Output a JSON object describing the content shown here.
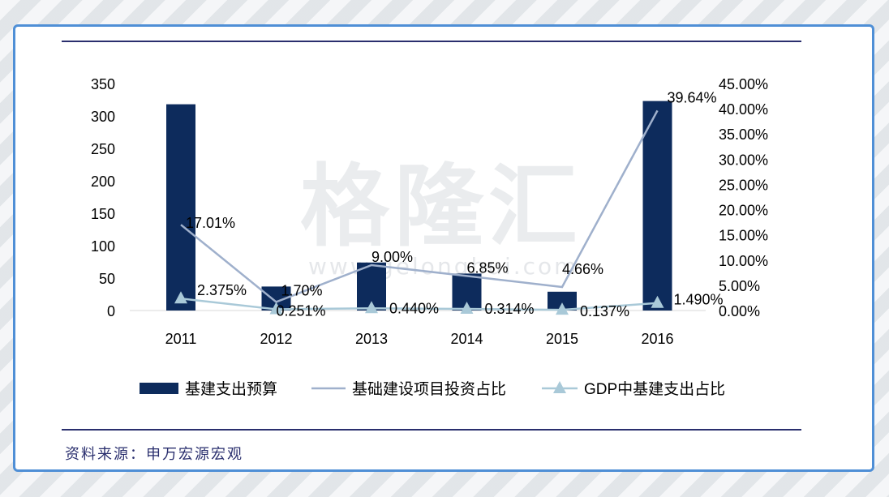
{
  "source_note": "资料来源：申万宏源宏观",
  "watermark": {
    "main": "格隆汇",
    "sub": "www.gelonghui.com"
  },
  "colors": {
    "bar": "#0d2b5c",
    "line": "#9fb0cc",
    "marker": "#a9c9d8",
    "frame": "#4f8fd6",
    "rule": "#2a2f6e"
  },
  "chart_data": {
    "type": "bar",
    "categories": [
      "2011",
      "2012",
      "2013",
      "2014",
      "2015",
      "2016"
    ],
    "left_axis": {
      "ticks": [
        "0",
        "50",
        "100",
        "150",
        "200",
        "250",
        "300",
        "350"
      ],
      "ylim": [
        0,
        350
      ]
    },
    "right_axis": {
      "ticks": [
        "0.00%",
        "5.00%",
        "10.00%",
        "15.00%",
        "20.00%",
        "25.00%",
        "30.00%",
        "35.00%",
        "40.00%",
        "45.00%"
      ],
      "ylim": [
        0,
        45
      ]
    },
    "series": [
      {
        "name": "基建支出预算",
        "kind": "bar",
        "axis": "left",
        "values": [
          318,
          37,
          74,
          57,
          29,
          323
        ]
      },
      {
        "name": "基础建设项目投资占比",
        "kind": "line",
        "axis": "right",
        "values": [
          17.01,
          1.7,
          9.0,
          6.85,
          4.66,
          39.64
        ],
        "labels": [
          "17.01%",
          "1.70%",
          "9.00%",
          "6.85%",
          "4.66%",
          "39.64%"
        ]
      },
      {
        "name": "GDP中基建支出占比",
        "kind": "line-marker",
        "axis": "right",
        "values": [
          2.375,
          0.251,
          0.44,
          0.314,
          0.137,
          1.49
        ],
        "labels": [
          "2.375%",
          "0.251%",
          "0.440%",
          "0.314%",
          "0.137%",
          "1.490%"
        ]
      }
    ],
    "legend_position": "bottom"
  }
}
